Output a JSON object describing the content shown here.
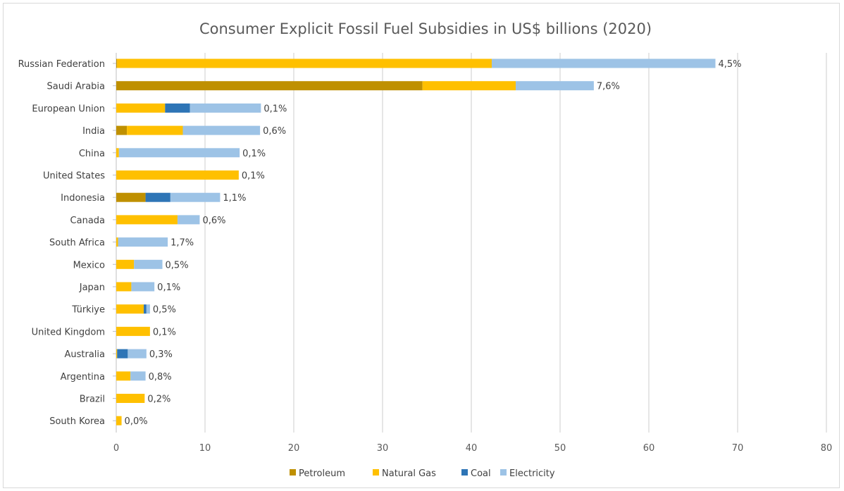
{
  "chart_data": {
    "type": "bar",
    "orientation": "horizontal",
    "stacked": true,
    "title": "Consumer  Explicit Fossil Fuel Subsidies in US$ billions (2020)",
    "xlabel": "",
    "ylabel": "",
    "xlim": [
      0,
      80
    ],
    "x_ticks": [
      "0",
      "10",
      "20",
      "30",
      "40",
      "50",
      "60",
      "70",
      "80"
    ],
    "grid": "vertical",
    "legend_position": "bottom",
    "categories": [
      "Russian Federation",
      "Saudi Arabia",
      "European Union",
      "India",
      "China",
      "United States",
      "Indonesia",
      "Canada",
      "South Africa",
      "Mexico",
      "Japan",
      "Türkiye",
      "United Kingdom",
      "Australia",
      "Argentina",
      "Brazil",
      "South Korea"
    ],
    "series": [
      {
        "name": "Petroleum",
        "color": "#bf9000",
        "values": [
          0.1,
          34.5,
          0,
          1.2,
          0,
          0,
          3.3,
          0,
          0,
          0,
          0,
          0,
          0,
          0,
          0,
          0,
          0
        ]
      },
      {
        "name": "Natural Gas",
        "color": "#ffc000",
        "values": [
          42.2,
          10.5,
          5.5,
          6.3,
          0.3,
          13.8,
          0,
          6.9,
          0.2,
          2.0,
          1.7,
          3.1,
          3.8,
          0.1,
          1.6,
          3.2,
          0.6
        ]
      },
      {
        "name": "Coal",
        "color": "#2e75b6",
        "values": [
          0,
          0,
          2.8,
          0,
          0,
          0,
          2.8,
          0,
          0,
          0,
          0,
          0.3,
          0,
          1.2,
          0,
          0,
          0
        ]
      },
      {
        "name": "Electricity",
        "color": "#9dc3e6",
        "values": [
          25.2,
          8.8,
          8.0,
          8.7,
          13.6,
          0,
          5.6,
          2.5,
          5.6,
          3.2,
          2.6,
          0.4,
          0,
          2.1,
          1.7,
          0,
          0
        ]
      }
    ],
    "data_labels": [
      "4,5%",
      "7,6%",
      "0,1%",
      "0,6%",
      "0,1%",
      "0,1%",
      "1,1%",
      "0,6%",
      "1,7%",
      "0,5%",
      "0,1%",
      "0,5%",
      "0,1%",
      "0,3%",
      "0,8%",
      "0,2%",
      "0,0%"
    ]
  },
  "colors": {
    "gridline": "#d9d9d9",
    "axis": "#bfbfbf",
    "title": "#595959",
    "text": "#404040"
  }
}
